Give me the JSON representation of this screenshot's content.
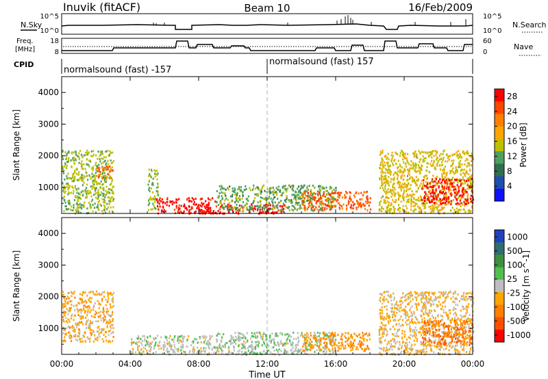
{
  "header": {
    "station": "Inuvik (fitACF)",
    "beam": "Beam 10",
    "date": "16/Feb/2009"
  },
  "top_panel": {
    "left_label": "N.Sky",
    "left_ticks": [
      "10^5",
      "10^0"
    ],
    "right_ticks": [
      "10^5",
      "10^0"
    ],
    "right_label": "N.Search"
  },
  "freq_panel": {
    "left_label_line1": "Freq.",
    "left_label_line2": "[MHz]",
    "left_ticks": [
      "18",
      "8"
    ],
    "right_ticks": [
      "60",
      "0"
    ],
    "right_label": "Nave"
  },
  "cpid": {
    "label": "CPID",
    "segment1": "normalsound (fast) -157",
    "segment2": "normalsound (fast) 157"
  },
  "colors": {
    "power_scale": [
      "#1010ff",
      "#1f4fae",
      "#2f6f4f",
      "#4f9f5f",
      "#bfbf00",
      "#ffa500",
      "#ff7f00",
      "#ff4500",
      "#ff0000"
    ],
    "velocity_scale": [
      "#2040c0",
      "#2f6f6f",
      "#3f8f3f",
      "#4fbf4f",
      "#bebebe",
      "#ffa500",
      "#ff7f00",
      "#ff5000",
      "#ff0000"
    ],
    "gridline": "#b0b0b0"
  },
  "chart_data": [
    {
      "type": "heatmap",
      "title": "",
      "xlabel": "Time UT",
      "ylabel": "Slant Range [km]",
      "xlim": [
        "00:00",
        "24:00"
      ],
      "ylim": [
        180,
        4500
      ],
      "x_ticks": [
        "00:00",
        "04:00",
        "08:00",
        "12:00",
        "16:00",
        "20:00",
        "00:00"
      ],
      "y_ticks": [
        "1000",
        "2000",
        "3000",
        "4000"
      ],
      "colorbar": {
        "label": "Power [dB]",
        "ticks": [
          "4",
          "8",
          "12",
          "16",
          "20",
          "24",
          "28"
        ],
        "range": [
          0,
          30
        ]
      },
      "scatter_regions": [
        {
          "t": [
            0.0,
            3.0
          ],
          "r": [
            200,
            2200
          ],
          "value": 14
        },
        {
          "t": [
            2.0,
            3.0
          ],
          "r": [
            1300,
            1700
          ],
          "value": 24
        },
        {
          "t": [
            5.0,
            5.6
          ],
          "r": [
            300,
            1600
          ],
          "value": 14
        },
        {
          "t": [
            5.5,
            9.0
          ],
          "r": [
            200,
            700
          ],
          "value": 28
        },
        {
          "t": [
            8.0,
            13.0
          ],
          "r": [
            200,
            500
          ],
          "value": 28
        },
        {
          "t": [
            9.0,
            16.0
          ],
          "r": [
            300,
            1100
          ],
          "value": 12
        },
        {
          "t": [
            14.0,
            18.0
          ],
          "r": [
            300,
            900
          ],
          "value": 24
        },
        {
          "t": [
            18.5,
            24.0
          ],
          "r": [
            200,
            2200
          ],
          "value": 16
        },
        {
          "t": [
            21.0,
            24.0
          ],
          "r": [
            500,
            1300
          ],
          "value": 28
        }
      ]
    },
    {
      "type": "heatmap",
      "title": "",
      "xlabel": "Time UT",
      "ylabel": "Slant Range [km]",
      "xlim": [
        "00:00",
        "24:00"
      ],
      "ylim": [
        180,
        4500
      ],
      "x_ticks": [
        "00:00",
        "04:00",
        "08:00",
        "12:00",
        "16:00",
        "20:00",
        "00:00"
      ],
      "y_ticks": [
        "1000",
        "2000",
        "3000",
        "4000"
      ],
      "colorbar": {
        "label": "Velocity [m s^-1]",
        "ticks": [
          "1000",
          "500",
          "100",
          "25",
          "-25",
          "-100",
          "-500",
          "-1000"
        ],
        "range": [
          -1000,
          1000
        ]
      },
      "scatter_regions": [
        {
          "t": [
            0.0,
            3.0
          ],
          "r": [
            600,
            2200
          ],
          "value": -200
        },
        {
          "t": [
            4.0,
            9.0
          ],
          "r": [
            200,
            800
          ],
          "value": 0
        },
        {
          "t": [
            9.0,
            16.0
          ],
          "r": [
            200,
            900
          ],
          "value": 50
        },
        {
          "t": [
            14.0,
            18.0
          ],
          "r": [
            300,
            900
          ],
          "value": -300
        },
        {
          "t": [
            18.5,
            24.0
          ],
          "r": [
            200,
            2200
          ],
          "value": -150
        },
        {
          "t": [
            21.0,
            24.0
          ],
          "r": [
            500,
            1300
          ],
          "value": -500
        }
      ]
    }
  ]
}
